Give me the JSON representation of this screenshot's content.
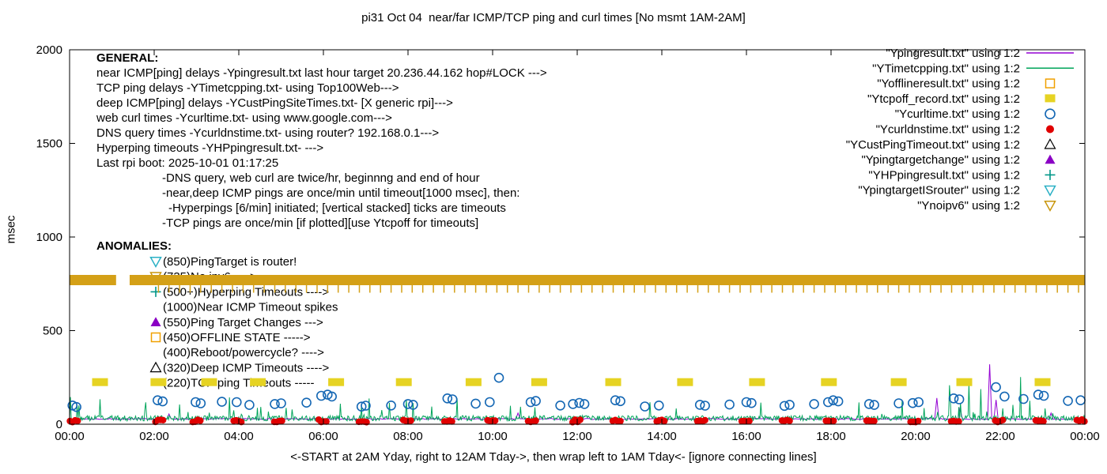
{
  "chart_data": {
    "type": "scatter",
    "title": "pi31 Oct 04  near/far ICMP/TCP ping and curl times [No msmt 1AM-2AM]",
    "ylabel": "msec",
    "xlabel": "<-START at 2AM Yday, right to 12AM Tday->, then wrap left to 1AM Tday<- [ignore connecting lines]",
    "xlim_hours": [
      0,
      24
    ],
    "ylim": [
      0,
      2000
    ],
    "grid": false,
    "legend_position": "top-right-inside",
    "xtick_labels": [
      "00:00",
      "02:00",
      "04:00",
      "06:00",
      "08:00",
      "10:00",
      "12:00",
      "14:00",
      "16:00",
      "18:00",
      "20:00",
      "22:00",
      "00:00"
    ],
    "ytick_values": [
      0,
      500,
      1000,
      1500,
      2000
    ],
    "legend": [
      {
        "label": "\"Ypingresult.txt\" using 1:2",
        "marker": "line",
        "color": "#9400d3"
      },
      {
        "label": "\"YTimetcpping.txt\" using 1:2",
        "marker": "line",
        "color": "#00a45a"
      },
      {
        "label": "\"Yofflineresult.txt\" using 1:2",
        "marker": "open-square",
        "color": "#f0a000"
      },
      {
        "label": "\"Ytcpoff_record.txt\" using 1:2",
        "marker": "filled-square",
        "color": "#e6d323"
      },
      {
        "label": "\"Ycurltime.txt\" using 1:2",
        "marker": "open-circle",
        "color": "#1467b4"
      },
      {
        "label": "\"Ycurldnstime.txt\" using 1:2",
        "marker": "filled-circle",
        "color": "#e00000"
      },
      {
        "label": "\"YCustPingTimeout.txt\" using 1:2",
        "marker": "open-triangle",
        "color": "#000000"
      },
      {
        "label": "\"Ypingtargetchange\" using 1:2",
        "marker": "filled-triangle",
        "color": "#8a00c4"
      },
      {
        "label": "\"YHPpingresult.txt\" using 1:2",
        "marker": "plus",
        "color": "#009688"
      },
      {
        "label": "\"YpingtargetISrouter\" using 1:2",
        "marker": "open-tri-down",
        "color": "#2ab0c5"
      },
      {
        "label": "\"Ynoipv6\" using 1:2",
        "marker": "open-tri-down",
        "color": "#c8960c"
      }
    ],
    "annotations": {
      "general": {
        "heading": "GENERAL:",
        "lines": [
          "near ICMP[ping] delays -Ypingresult.txt last hour target 20.236.44.162 hop#LOCK --->",
          "TCP ping delays -YTimetcpping.txt- using Top100Web--->",
          "deep ICMP[ping] delays -YCustPingSiteTimes.txt- [X generic rpi]--->",
          "web curl times -Ycurltime.txt- using www.google.com--->",
          "DNS query times -Ycurldnstime.txt- using router? 192.168.0.1--->",
          "Hyperping timeouts -YHPpingresult.txt- --->",
          "Last rpi boot: 2025-10-01 01:17:25"
        ],
        "sub_lines": [
          "-DNS query, web curl are twice/hr, beginnng and end of hour",
          "-near,deep ICMP pings are once/min until timeout[1000 msec], then:",
          "-Hyperpings [6/min] initiated; [vertical stacked] ticks are timeouts",
          "-TCP pings are once/min [if plotted][use Ytcpoff for timeouts]"
        ]
      },
      "anomalies": {
        "heading": "ANOMALIES:",
        "items": [
          {
            "marker": "open-tri-down",
            "color": "#2ab0c5",
            "text": "(850)PingTarget is router!"
          },
          {
            "marker": "open-tri-down",
            "color": "#c8960c",
            "text": "(735)No ipv6 ---->"
          },
          {
            "marker": "plus",
            "color": "#009688",
            "text": "(500+)Hyperping Timeouts ---->"
          },
          {
            "marker": "none",
            "color": "#000000",
            "text": "(1000)Near ICMP Timeout spikes"
          },
          {
            "marker": "filled-triangle",
            "color": "#8a00c4",
            "text": "(550)Ping Target Changes --->"
          },
          {
            "marker": "open-square",
            "color": "#f0a000",
            "text": "(450)OFFLINE STATE ----->"
          },
          {
            "marker": "none",
            "color": "#000000",
            "text": "(400)Reboot/powercycle? ---->"
          },
          {
            "marker": "open-triangle",
            "color": "#000000",
            "text": "(320)Deep ICMP Timeouts ---->"
          },
          {
            "marker": "none",
            "color": "#000000",
            "text": "(220)TCP ping Timeouts -----"
          }
        ]
      }
    },
    "series": {
      "ping_line": {
        "name": "Ypingresult.txt",
        "color": "#9400d3",
        "baseline_msec": 28,
        "spikes": [
          [
            2.35,
            55
          ],
          [
            10.6,
            60
          ],
          [
            20.5,
            140
          ],
          [
            21.05,
            90
          ],
          [
            21.75,
            320
          ],
          [
            21.9,
            130
          ],
          [
            23.2,
            60
          ]
        ]
      },
      "tcpping_line": {
        "name": "YTimetcpping.txt",
        "color": "#00a45a",
        "baseline_msec": 18,
        "noise_msec": 28,
        "spike_prob": 0.05,
        "spike_max_msec": 100,
        "regions": [
          {
            "range": [
              0,
              0.5
            ],
            "prob": 0.18,
            "max": 110
          },
          {
            "range": [
              20.2,
              22.6
            ],
            "prob": 0.12,
            "max": 240
          }
        ],
        "seed": 1234
      },
      "curl_circles": {
        "name": "Ycurltime.txt",
        "color": "#1467b4",
        "points": [
          [
            0.07,
            100
          ],
          [
            0.16,
            92
          ],
          [
            2.08,
            128
          ],
          [
            2.2,
            122
          ],
          [
            2.98,
            118
          ],
          [
            3.1,
            112
          ],
          [
            3.6,
            120
          ],
          [
            3.95,
            118
          ],
          [
            4.25,
            103
          ],
          [
            4.85,
            108
          ],
          [
            5.0,
            112
          ],
          [
            5.6,
            115
          ],
          [
            5.95,
            152
          ],
          [
            6.1,
            158
          ],
          [
            6.2,
            148
          ],
          [
            6.9,
            94
          ],
          [
            7.0,
            99
          ],
          [
            7.6,
            100
          ],
          [
            8.0,
            108
          ],
          [
            8.12,
            104
          ],
          [
            8.93,
            138
          ],
          [
            9.05,
            133
          ],
          [
            9.6,
            110
          ],
          [
            9.93,
            118
          ],
          [
            10.15,
            248
          ],
          [
            10.9,
            118
          ],
          [
            11.02,
            124
          ],
          [
            11.6,
            100
          ],
          [
            11.9,
            108
          ],
          [
            12.05,
            114
          ],
          [
            12.17,
            108
          ],
          [
            12.9,
            128
          ],
          [
            13.02,
            123
          ],
          [
            13.6,
            95
          ],
          [
            13.93,
            100
          ],
          [
            14.9,
            104
          ],
          [
            15.02,
            99
          ],
          [
            15.6,
            105
          ],
          [
            16.0,
            118
          ],
          [
            16.12,
            113
          ],
          [
            16.9,
            98
          ],
          [
            17.02,
            104
          ],
          [
            17.6,
            108
          ],
          [
            17.93,
            118
          ],
          [
            18.05,
            128
          ],
          [
            18.17,
            122
          ],
          [
            18.9,
            108
          ],
          [
            19.02,
            103
          ],
          [
            19.6,
            112
          ],
          [
            19.93,
            113
          ],
          [
            20.07,
            118
          ],
          [
            20.9,
            138
          ],
          [
            21.03,
            133
          ],
          [
            21.9,
            198
          ],
          [
            22.1,
            148
          ],
          [
            22.55,
            135
          ],
          [
            22.9,
            158
          ],
          [
            23.03,
            152
          ],
          [
            23.6,
            125
          ],
          [
            23.9,
            128
          ]
        ]
      },
      "dns_dots": {
        "name": "Ycurldnstime.txt",
        "color": "#e00000",
        "y_msec": 18,
        "cluster_hours": [
          0.1,
          2.12,
          3.0,
          3.97,
          4.93,
          5.98,
          6.93,
          7.98,
          8.95,
          9.97,
          10.93,
          11.98,
          12.93,
          13.97,
          14.93,
          15.98,
          16.93,
          17.97,
          18.93,
          19.97,
          20.93,
          21.97,
          22.93,
          23.9
        ]
      },
      "tcpoff_squares": {
        "name": "Ytcpoff_record.txt",
        "color": "#e6d323",
        "y_msec": 225,
        "hours": [
          0.72,
          2.1,
          3.3,
          4.45,
          6.3,
          7.9,
          9.55,
          11.1,
          12.85,
          14.55,
          16.25,
          17.95,
          19.6,
          21.15,
          23.0
        ]
      },
      "noipv6_band": {
        "name": "Ynoipv6",
        "color": "#d4a017",
        "y_msec": 770,
        "segments": [
          [
            0,
            1.1
          ],
          [
            1.42,
            24
          ]
        ],
        "tick_start_hour": 2.1,
        "tick_step_hour": 0.25
      }
    }
  }
}
